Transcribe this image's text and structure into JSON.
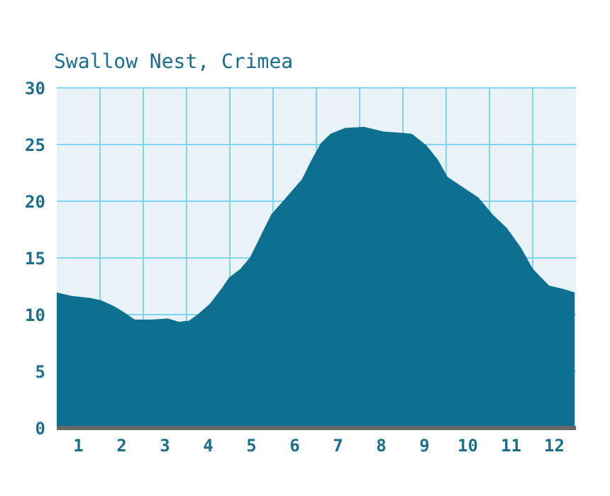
{
  "chart_data": {
    "type": "area",
    "title": "Swallow Nest, Crimea",
    "x": [
      0.5,
      0.83,
      1.27,
      1.52,
      1.81,
      2.03,
      2.3,
      2.69,
      3.07,
      3.32,
      3.56,
      3.78,
      4.05,
      4.33,
      4.49,
      4.76,
      4.98,
      5.25,
      5.47,
      5.75,
      6.18,
      6.4,
      6.62,
      6.84,
      7.17,
      7.6,
      8.04,
      8.37,
      8.7,
      9.03,
      9.3,
      9.52,
      9.91,
      10.23,
      10.56,
      10.89,
      11.21,
      11.49,
      11.87,
      12.2,
      12.47
    ],
    "values": [
      11.9,
      11.6,
      11.4,
      11.2,
      10.7,
      10.2,
      9.5,
      9.5,
      9.6,
      9.3,
      9.4,
      10.0,
      10.9,
      12.3,
      13.2,
      14.0,
      15.0,
      17.1,
      18.8,
      20.0,
      21.9,
      23.6,
      25.1,
      25.9,
      26.4,
      26.5,
      26.1,
      26.0,
      25.9,
      24.9,
      23.6,
      22.1,
      21.1,
      20.3,
      18.8,
      17.6,
      15.9,
      14.0,
      12.5,
      12.2,
      11.9
    ],
    "color": "#0e7090",
    "xlim": [
      0.5,
      12.5
    ],
    "xticks": [
      {
        "value": 1,
        "label": "1"
      },
      {
        "value": 1.5,
        "label": null
      },
      {
        "value": 2,
        "label": "2"
      },
      {
        "value": 2.5,
        "label": null
      },
      {
        "value": 3,
        "label": "3"
      },
      {
        "value": 3.5,
        "label": null
      },
      {
        "value": 4,
        "label": "4"
      },
      {
        "value": 4.5,
        "label": null
      },
      {
        "value": 5,
        "label": "5"
      },
      {
        "value": 5.5,
        "label": null
      },
      {
        "value": 6,
        "label": "6"
      },
      {
        "value": 6.5,
        "label": null
      },
      {
        "value": 7,
        "label": "7"
      },
      {
        "value": 7.5,
        "label": null
      },
      {
        "value": 8,
        "label": "8"
      },
      {
        "value": 8.5,
        "label": null
      },
      {
        "value": 9,
        "label": "9"
      },
      {
        "value": 9.5,
        "label": null
      },
      {
        "value": 10,
        "label": "10"
      },
      {
        "value": 10.5,
        "label": null
      },
      {
        "value": 11,
        "label": "11"
      },
      {
        "value": 11.5,
        "label": null
      },
      {
        "value": 12,
        "label": "12"
      }
    ],
    "ylim": [
      0,
      30
    ],
    "yticks": [
      0,
      5,
      10,
      15,
      20,
      25,
      30
    ],
    "grid": true
  }
}
